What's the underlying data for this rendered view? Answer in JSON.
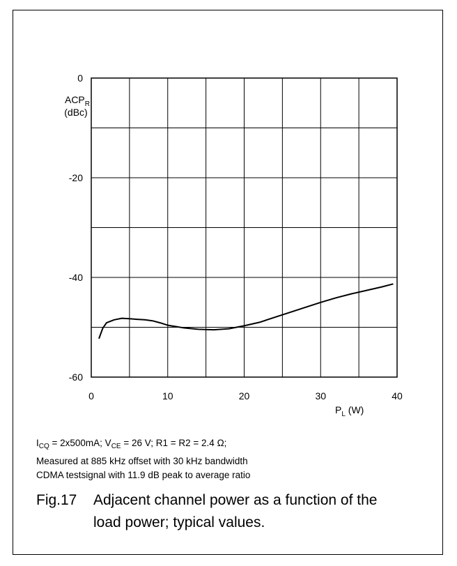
{
  "chart_data": {
    "type": "line",
    "x": [
      1,
      1.5,
      2,
      3,
      4,
      5,
      6,
      7,
      8,
      9,
      10,
      12,
      14,
      16,
      18,
      20,
      22,
      24,
      26,
      28,
      30,
      32,
      34,
      36,
      38,
      39.5
    ],
    "series": [
      {
        "values": [
          -52.3,
          -50.2,
          -49.1,
          -48.5,
          -48.2,
          -48.3,
          -48.4,
          -48.5,
          -48.7,
          -49.1,
          -49.6,
          -50.1,
          -50.4,
          -50.5,
          -50.3,
          -49.7,
          -49.0,
          -48.0,
          -47.0,
          -46.0,
          -45.0,
          -44.1,
          -43.3,
          -42.6,
          -41.9,
          -41.3
        ]
      }
    ],
    "xlim": [
      0,
      40
    ],
    "ylim": [
      -60,
      0
    ],
    "x_ticks": [
      "0",
      "10",
      "20",
      "30",
      "40"
    ],
    "y_ticks": [
      "0",
      "-20",
      "-40",
      "-60"
    ],
    "ylabel_main": "ACP",
    "ylabel_sub": "R",
    "ylabel_unit": "(dBc)",
    "xlabel_main": "P",
    "xlabel_sub": "L",
    "xlabel_unit": " (W)",
    "grid": true,
    "line_color": "#000000"
  },
  "conditions": {
    "line1": {
      "i": "I",
      "i_sub": "CQ",
      "part1": " = 2x500mA; V",
      "v_sub": "CE",
      "part2": " = 26 V; R1 = R2 = 2.4 Ω;"
    },
    "line2": "Measured at 885 kHz offset with 30 kHz bandwidth",
    "line3": "CDMA testsignal with 11.9 dB peak to average ratio"
  },
  "caption": {
    "label": "Fig.17",
    "line1": "Adjacent channel power as a function of the",
    "line2": "load power; typical values."
  }
}
